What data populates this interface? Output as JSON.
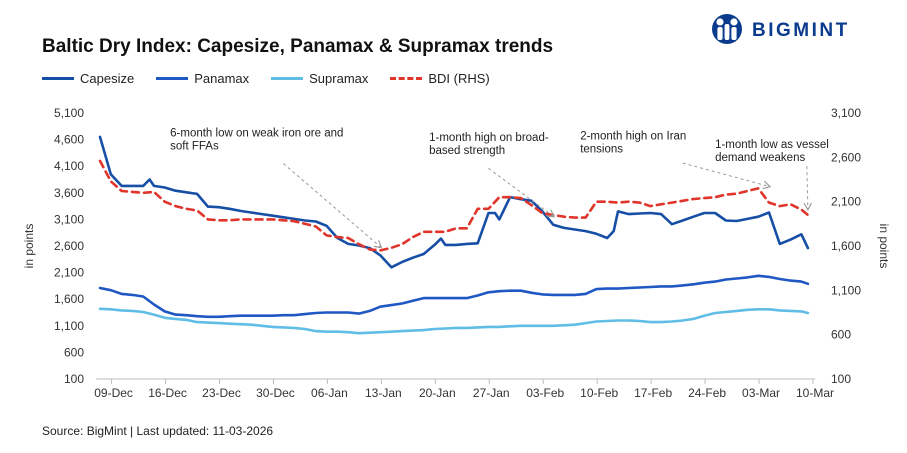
{
  "title": "Baltic Dry Index: Capesize, Panamax & Supramax trends",
  "logo": {
    "text": "BIGMINT",
    "icon": "bigmint-logo-icon"
  },
  "source": "Source: BigMint | Last updated: 11-03-2026",
  "colors": {
    "capesize": "#174ea6",
    "panamax": "#1f57c3",
    "supramax": "#5fbde6",
    "bdi": "#e0352b",
    "brand": "#0b3b8c"
  },
  "chart_data": {
    "type": "line",
    "title": "Baltic Dry Index: Capesize, Panamax & Supramax trends",
    "ylabel": "in points",
    "y2label": "in points",
    "ylim": [
      100,
      5100
    ],
    "yticks": [
      "100",
      "600",
      "1,100",
      "1,600",
      "2,100",
      "2,600",
      "3,100",
      "3,600",
      "4,100",
      "4,600",
      "5,100"
    ],
    "y2lim": [
      100,
      3100
    ],
    "y2ticks": [
      "100",
      "600",
      "1,100",
      "1,600",
      "2,100",
      "2,600",
      "3,100"
    ],
    "xlim": [
      0,
      65
    ],
    "x_ticks": [
      {
        "label": "09-Dec",
        "pos": 2
      },
      {
        "label": "16-Dec",
        "pos": 7
      },
      {
        "label": "23-Dec",
        "pos": 12
      },
      {
        "label": "30-Dec",
        "pos": 17
      },
      {
        "label": "06-Jan",
        "pos": 22
      },
      {
        "label": "13-Jan",
        "pos": 27
      },
      {
        "label": "20-Jan",
        "pos": 32
      },
      {
        "label": "27-Jan",
        "pos": 37
      },
      {
        "label": "03-Feb",
        "pos": 42
      },
      {
        "label": "10-Feb",
        "pos": 47
      },
      {
        "label": "17-Feb",
        "pos": 52
      },
      {
        "label": "24-Feb",
        "pos": 57
      },
      {
        "label": "03-Mar",
        "pos": 62
      },
      {
        "label": "10-Mar",
        "pos": 67
      }
    ],
    "legend_position": "top-left",
    "series": [
      {
        "name": "Capesize",
        "axis": "left",
        "values": [
          [
            0,
            4650
          ],
          [
            1,
            3950
          ],
          [
            2,
            3730
          ],
          [
            3,
            3730
          ],
          [
            4,
            3730
          ],
          [
            4.6,
            3850
          ],
          [
            5,
            3730
          ],
          [
            6,
            3700
          ],
          [
            7,
            3640
          ],
          [
            8,
            3610
          ],
          [
            9,
            3580
          ],
          [
            10,
            3340
          ],
          [
            11,
            3330
          ],
          [
            12,
            3300
          ],
          [
            13,
            3260
          ],
          [
            14,
            3230
          ],
          [
            15,
            3200
          ],
          [
            16,
            3170
          ],
          [
            17,
            3140
          ],
          [
            18,
            3110
          ],
          [
            19,
            3080
          ],
          [
            20,
            3060
          ],
          [
            21,
            2980
          ],
          [
            22,
            2750
          ],
          [
            23,
            2640
          ],
          [
            24,
            2610
          ],
          [
            25,
            2560
          ],
          [
            26,
            2420
          ],
          [
            27,
            2200
          ],
          [
            28,
            2300
          ],
          [
            29,
            2380
          ],
          [
            30,
            2450
          ],
          [
            31,
            2620
          ],
          [
            31.6,
            2740
          ],
          [
            32,
            2620
          ],
          [
            33,
            2620
          ],
          [
            34,
            2640
          ],
          [
            35,
            2650
          ],
          [
            36,
            3220
          ],
          [
            36.6,
            3220
          ],
          [
            37,
            3100
          ],
          [
            38,
            3520
          ],
          [
            39,
            3480
          ],
          [
            40,
            3450
          ],
          [
            41,
            3250
          ],
          [
            42,
            3000
          ],
          [
            43,
            2940
          ],
          [
            44,
            2910
          ],
          [
            45,
            2880
          ],
          [
            46,
            2830
          ],
          [
            47,
            2750
          ],
          [
            47.6,
            2880
          ],
          [
            48,
            3250
          ],
          [
            49,
            3200
          ],
          [
            50,
            3210
          ],
          [
            51,
            3220
          ],
          [
            52,
            3200
          ],
          [
            53,
            3010
          ],
          [
            54,
            3080
          ],
          [
            55,
            3150
          ],
          [
            56,
            3220
          ],
          [
            57,
            3220
          ],
          [
            58,
            3080
          ],
          [
            59,
            3070
          ],
          [
            60,
            3110
          ],
          [
            61,
            3150
          ],
          [
            62,
            3230
          ],
          [
            63,
            2640
          ],
          [
            64,
            2720
          ],
          [
            65,
            2820
          ],
          [
            65.6,
            2560
          ]
        ]
      },
      {
        "name": "Panamax",
        "axis": "left",
        "values": [
          [
            0,
            1810
          ],
          [
            1,
            1770
          ],
          [
            2,
            1700
          ],
          [
            3,
            1680
          ],
          [
            4,
            1650
          ],
          [
            5,
            1500
          ],
          [
            6,
            1370
          ],
          [
            7,
            1310
          ],
          [
            8,
            1300
          ],
          [
            9,
            1280
          ],
          [
            10,
            1270
          ],
          [
            11,
            1270
          ],
          [
            12,
            1280
          ],
          [
            13,
            1290
          ],
          [
            14,
            1290
          ],
          [
            15,
            1290
          ],
          [
            16,
            1290
          ],
          [
            17,
            1300
          ],
          [
            18,
            1300
          ],
          [
            19,
            1320
          ],
          [
            20,
            1340
          ],
          [
            21,
            1350
          ],
          [
            22,
            1350
          ],
          [
            23,
            1350
          ],
          [
            24,
            1330
          ],
          [
            25,
            1380
          ],
          [
            26,
            1460
          ],
          [
            27,
            1490
          ],
          [
            28,
            1520
          ],
          [
            29,
            1570
          ],
          [
            30,
            1620
          ],
          [
            31,
            1620
          ],
          [
            32,
            1620
          ],
          [
            33,
            1620
          ],
          [
            34,
            1620
          ],
          [
            35,
            1670
          ],
          [
            36,
            1730
          ],
          [
            37,
            1750
          ],
          [
            38,
            1760
          ],
          [
            39,
            1760
          ],
          [
            40,
            1720
          ],
          [
            41,
            1690
          ],
          [
            42,
            1680
          ],
          [
            43,
            1680
          ],
          [
            44,
            1680
          ],
          [
            45,
            1700
          ],
          [
            46,
            1790
          ],
          [
            47,
            1800
          ],
          [
            48,
            1800
          ],
          [
            49,
            1810
          ],
          [
            50,
            1820
          ],
          [
            51,
            1830
          ],
          [
            52,
            1840
          ],
          [
            53,
            1840
          ],
          [
            54,
            1860
          ],
          [
            55,
            1880
          ],
          [
            56,
            1910
          ],
          [
            57,
            1930
          ],
          [
            58,
            1970
          ],
          [
            59,
            1990
          ],
          [
            60,
            2010
          ],
          [
            61,
            2040
          ],
          [
            62,
            2020
          ],
          [
            63,
            1980
          ],
          [
            64,
            1950
          ],
          [
            65,
            1930
          ],
          [
            65.6,
            1890
          ]
        ]
      },
      {
        "name": "Supramax",
        "axis": "left",
        "values": [
          [
            0,
            1420
          ],
          [
            1,
            1410
          ],
          [
            2,
            1390
          ],
          [
            3,
            1380
          ],
          [
            4,
            1360
          ],
          [
            5,
            1310
          ],
          [
            6,
            1250
          ],
          [
            7,
            1230
          ],
          [
            8,
            1210
          ],
          [
            9,
            1170
          ],
          [
            10,
            1160
          ],
          [
            11,
            1150
          ],
          [
            12,
            1140
          ],
          [
            13,
            1130
          ],
          [
            14,
            1120
          ],
          [
            15,
            1100
          ],
          [
            16,
            1080
          ],
          [
            17,
            1070
          ],
          [
            18,
            1060
          ],
          [
            19,
            1040
          ],
          [
            20,
            1000
          ],
          [
            21,
            990
          ],
          [
            22,
            990
          ],
          [
            23,
            980
          ],
          [
            24,
            960
          ],
          [
            25,
            970
          ],
          [
            26,
            980
          ],
          [
            27,
            990
          ],
          [
            28,
            1000
          ],
          [
            29,
            1010
          ],
          [
            30,
            1020
          ],
          [
            31,
            1040
          ],
          [
            32,
            1050
          ],
          [
            33,
            1060
          ],
          [
            34,
            1060
          ],
          [
            35,
            1070
          ],
          [
            36,
            1080
          ],
          [
            37,
            1080
          ],
          [
            38,
            1090
          ],
          [
            39,
            1100
          ],
          [
            40,
            1100
          ],
          [
            41,
            1100
          ],
          [
            42,
            1100
          ],
          [
            43,
            1110
          ],
          [
            44,
            1120
          ],
          [
            45,
            1150
          ],
          [
            46,
            1180
          ],
          [
            47,
            1190
          ],
          [
            48,
            1200
          ],
          [
            49,
            1200
          ],
          [
            50,
            1190
          ],
          [
            51,
            1170
          ],
          [
            52,
            1170
          ],
          [
            53,
            1180
          ],
          [
            54,
            1200
          ],
          [
            55,
            1230
          ],
          [
            56,
            1290
          ],
          [
            57,
            1340
          ],
          [
            58,
            1360
          ],
          [
            59,
            1380
          ],
          [
            60,
            1400
          ],
          [
            61,
            1410
          ],
          [
            62,
            1410
          ],
          [
            63,
            1390
          ],
          [
            64,
            1380
          ],
          [
            65,
            1370
          ],
          [
            65.6,
            1340
          ]
        ]
      },
      {
        "name": "BDI (RHS)",
        "axis": "right",
        "dashed": true,
        "values": [
          [
            0,
            2560
          ],
          [
            1,
            2330
          ],
          [
            2,
            2220
          ],
          [
            3,
            2210
          ],
          [
            4,
            2200
          ],
          [
            5,
            2210
          ],
          [
            6,
            2100
          ],
          [
            7,
            2050
          ],
          [
            8,
            2020
          ],
          [
            9,
            2000
          ],
          [
            10,
            1900
          ],
          [
            11,
            1890
          ],
          [
            12,
            1890
          ],
          [
            13,
            1900
          ],
          [
            14,
            1900
          ],
          [
            15,
            1900
          ],
          [
            16,
            1900
          ],
          [
            17,
            1890
          ],
          [
            18,
            1880
          ],
          [
            19,
            1850
          ],
          [
            20,
            1820
          ],
          [
            21,
            1720
          ],
          [
            22,
            1700
          ],
          [
            23,
            1690
          ],
          [
            24,
            1620
          ],
          [
            25,
            1560
          ],
          [
            26,
            1550
          ],
          [
            27,
            1580
          ],
          [
            28,
            1620
          ],
          [
            29,
            1700
          ],
          [
            30,
            1760
          ],
          [
            31,
            1760
          ],
          [
            32,
            1760
          ],
          [
            33,
            1800
          ],
          [
            34,
            1800
          ],
          [
            35,
            2020
          ],
          [
            36,
            2020
          ],
          [
            37,
            2150
          ],
          [
            38,
            2150
          ],
          [
            39,
            2140
          ],
          [
            40,
            2060
          ],
          [
            41,
            1970
          ],
          [
            42,
            1950
          ],
          [
            43,
            1930
          ],
          [
            44,
            1920
          ],
          [
            45,
            1920
          ],
          [
            46,
            2100
          ],
          [
            47,
            2100
          ],
          [
            48,
            2090
          ],
          [
            49,
            2100
          ],
          [
            50,
            2090
          ],
          [
            51,
            2050
          ],
          [
            52,
            2070
          ],
          [
            53,
            2090
          ],
          [
            54,
            2110
          ],
          [
            55,
            2130
          ],
          [
            56,
            2140
          ],
          [
            57,
            2150
          ],
          [
            58,
            2180
          ],
          [
            59,
            2190
          ],
          [
            60,
            2220
          ],
          [
            61,
            2250
          ],
          [
            62,
            2090
          ],
          [
            63,
            2050
          ],
          [
            64,
            2070
          ],
          [
            65,
            2010
          ],
          [
            65.6,
            1950
          ]
        ]
      }
    ],
    "annotations": [
      {
        "lines": [
          "6-month low on weak iron ore and",
          "soft FFAs"
        ],
        "text_x": 6.5,
        "text_y": 4660,
        "arrow_from": [
          17,
          4150
        ],
        "arrow_to": [
          26,
          2580
        ]
      },
      {
        "lines": [
          "1-month high on broad-",
          "based strength"
        ],
        "text_x": 30.5,
        "text_y": 4570,
        "arrow_from": [
          36,
          4060
        ],
        "arrow_to": [
          42,
          3160
        ]
      },
      {
        "lines": [
          "2-month high on Iran",
          "tensions"
        ],
        "text_x": 44.5,
        "text_y": 4600,
        "arrow_from": [
          54,
          4160
        ],
        "arrow_to": [
          62,
          3720
        ]
      },
      {
        "lines": [
          "1-month low as vessel",
          "demand weakens"
        ],
        "text_x": 57,
        "text_y": 4440,
        "arrow_from": [
          65.5,
          4100
        ],
        "arrow_to": [
          65.6,
          3300
        ]
      }
    ]
  }
}
